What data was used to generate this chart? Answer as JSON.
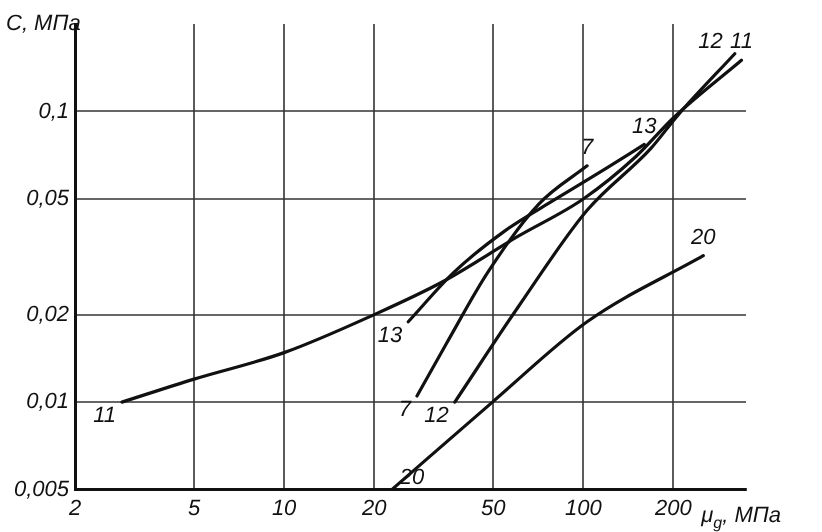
{
  "chart_data": {
    "type": "line",
    "xlabel": "μ$_{g}$, МПа",
    "ylabel": "C, МПа",
    "log": "xy",
    "grid": true,
    "legend": false,
    "marker": "none",
    "line_style": "solid",
    "xlim": [
      2,
      350
    ],
    "ylim": [
      0.005,
      0.2
    ],
    "xticks": [
      2,
      5,
      10,
      20,
      50,
      100,
      200
    ],
    "yticks": [
      {
        "value": 0.005,
        "label": "0,005"
      },
      {
        "value": 0.01,
        "label": "0,01"
      },
      {
        "value": 0.02,
        "label": "0,02"
      },
      {
        "value": 0.05,
        "label": "0,05"
      },
      {
        "value": 0.1,
        "label": "0,1"
      }
    ],
    "series": [
      {
        "name": "11",
        "color": "#111111",
        "x": [
          2.87,
          5,
          10,
          20,
          34,
          60,
          100,
          150,
          200,
          338
        ],
        "values": [
          0.01,
          0.012,
          0.0148,
          0.02,
          0.026,
          0.037,
          0.05,
          0.07,
          0.095,
          0.15
        ]
      },
      {
        "name": "13",
        "color": "#111111",
        "x": [
          26,
          37,
          55,
          81,
          120,
          160
        ],
        "values": [
          0.0189,
          0.028,
          0.039,
          0.05,
          0.064,
          0.077
        ]
      },
      {
        "name": "7",
        "color": "#111111",
        "x": [
          27.8,
          35,
          48,
          71,
          103
        ],
        "values": [
          0.0105,
          0.016,
          0.028,
          0.048,
          0.065
        ]
      },
      {
        "name": "12",
        "color": "#111111",
        "x": [
          37.2,
          60.5,
          103,
          168,
          207,
          321
        ],
        "values": [
          0.01,
          0.0212,
          0.0457,
          0.0745,
          0.097,
          0.158
        ]
      },
      {
        "name": "20",
        "color": "#111111",
        "x": [
          22.9,
          49.7,
          103,
          252
        ],
        "values": [
          0.005,
          0.01,
          0.0189,
          0.0319
        ]
      }
    ]
  }
}
